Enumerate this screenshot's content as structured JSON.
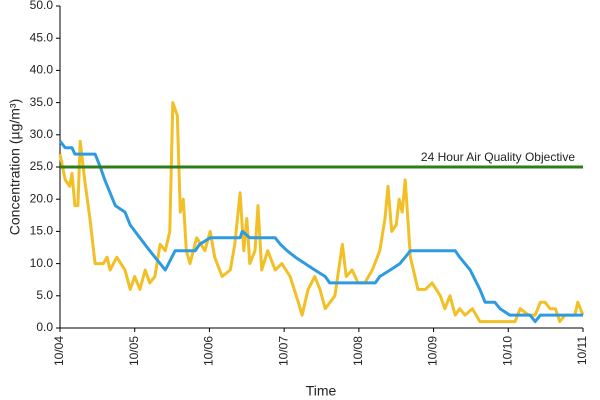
{
  "chart_data": {
    "type": "line",
    "ylabel": "Concentration (µg/m³)",
    "xlabel": "Time",
    "xlim": [
      0,
      7
    ],
    "xticks": [
      {
        "value": 0,
        "label": "10/04"
      },
      {
        "value": 1,
        "label": "10/05"
      },
      {
        "value": 2,
        "label": "10/06"
      },
      {
        "value": 3,
        "label": "10/07"
      },
      {
        "value": 4,
        "label": "10/08"
      },
      {
        "value": 5,
        "label": "10/09"
      },
      {
        "value": 6,
        "label": "10/10"
      },
      {
        "value": 7,
        "label": "10/11"
      }
    ],
    "ylim": [
      0,
      50
    ],
    "yticks": [
      {
        "value": 0,
        "label": "0.0"
      },
      {
        "value": 5,
        "label": "5.0"
      },
      {
        "value": 10,
        "label": "10.0"
      },
      {
        "value": 15,
        "label": "15.0"
      },
      {
        "value": 20,
        "label": "20.0"
      },
      {
        "value": 25,
        "label": "25.0"
      },
      {
        "value": 30,
        "label": "30.0"
      },
      {
        "value": 35,
        "label": "35.0"
      },
      {
        "value": 40,
        "label": "40.0"
      },
      {
        "value": 45,
        "label": "45.0"
      },
      {
        "value": 50,
        "label": "50.0"
      }
    ],
    "grid": false,
    "reference_lines": [
      {
        "value": 25,
        "label": "24 Hour Air Quality Objective",
        "color": "#2e7d1a"
      }
    ],
    "series": [
      {
        "color": "#f2bf26",
        "x": [
          0,
          0.07,
          0.13,
          0.16,
          0.2,
          0.24,
          0.27,
          0.33,
          0.4,
          0.47,
          0.58,
          0.63,
          0.67,
          0.76,
          0.87,
          0.94,
          1.0,
          1.07,
          1.14,
          1.2,
          1.27,
          1.34,
          1.41,
          1.47,
          1.51,
          1.57,
          1.61,
          1.65,
          1.69,
          1.74,
          1.83,
          1.94,
          2.01,
          2.07,
          2.17,
          2.28,
          2.34,
          2.41,
          2.46,
          2.5,
          2.54,
          2.61,
          2.65,
          2.7,
          2.78,
          2.88,
          2.97,
          3.08,
          3.19,
          3.24,
          3.32,
          3.41,
          3.48,
          3.55,
          3.68,
          3.78,
          3.83,
          3.91,
          3.99,
          4.08,
          4.18,
          4.28,
          4.35,
          4.39,
          4.44,
          4.5,
          4.54,
          4.58,
          4.62,
          4.69,
          4.79,
          4.89,
          4.98,
          5.09,
          5.15,
          5.22,
          5.29,
          5.35,
          5.42,
          5.52,
          5.62,
          5.76,
          5.96,
          6.09,
          6.16,
          6.27,
          6.36,
          6.43,
          6.49,
          6.56,
          6.63,
          6.69,
          6.76,
          6.89,
          6.93,
          7
        ],
        "values": [
          27,
          23,
          22,
          24,
          19,
          19,
          29,
          23,
          17,
          10,
          10,
          11,
          9,
          11,
          9,
          6,
          8,
          6,
          9,
          7,
          8,
          13,
          12,
          15,
          35,
          33,
          18,
          20,
          12,
          10,
          14,
          12,
          15,
          11,
          8,
          9,
          13,
          21,
          12,
          17,
          10,
          12,
          19,
          9,
          12,
          9,
          10,
          8,
          4,
          2,
          6,
          8,
          6,
          3,
          5,
          13,
          8,
          9,
          7,
          7,
          9,
          12,
          17,
          22,
          15,
          16,
          20,
          18,
          23,
          11,
          6,
          6,
          7,
          5,
          3,
          5,
          2,
          3,
          2,
          3,
          1,
          1,
          1,
          1,
          3,
          2,
          2,
          4,
          4,
          3,
          3,
          1,
          2,
          2,
          4,
          2
        ]
      },
      {
        "color": "#2e9be0",
        "x": [
          0,
          0.07,
          0.16,
          0.2,
          0.47,
          0.54,
          0.6,
          0.67,
          0.74,
          0.87,
          0.94,
          1.07,
          1.2,
          1.34,
          1.41,
          1.54,
          1.81,
          1.87,
          2.01,
          2.41,
          2.44,
          2.54,
          2.88,
          2.95,
          3.04,
          3.15,
          3.28,
          3.41,
          3.55,
          3.61,
          4.22,
          4.28,
          4.42,
          4.55,
          4.62,
          4.69,
          5.29,
          5.35,
          5.49,
          5.62,
          5.69,
          5.82,
          5.89,
          6.02,
          6.29,
          6.36,
          6.43,
          7
        ],
        "values": [
          29,
          28,
          28,
          27,
          27,
          25,
          23,
          21,
          19,
          18,
          16,
          14,
          12,
          10,
          9,
          12,
          12,
          13,
          14,
          14,
          15,
          14,
          14,
          13,
          12,
          11,
          10,
          9,
          8,
          7,
          7,
          8,
          9,
          10,
          11,
          12,
          12,
          11,
          9,
          6,
          4,
          4,
          3,
          2,
          2,
          1,
          2,
          2
        ]
      }
    ]
  }
}
